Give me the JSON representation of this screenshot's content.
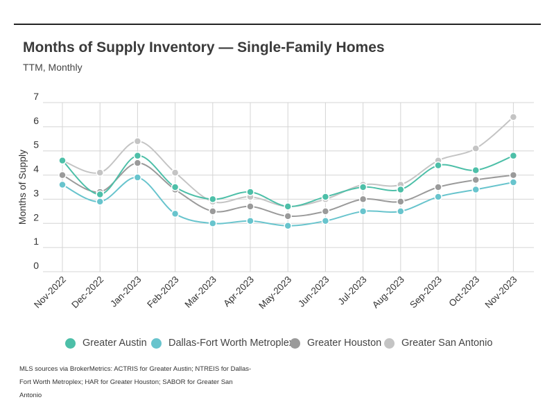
{
  "title": "Months of Supply Inventory — Single-Family Homes",
  "subtitle": "TTM, Monthly",
  "footnote": "MLS sources via BrokerMetrics: ACTRIS for Greater Austin; NTREIS for Dallas-Fort Worth Metroplex; HAR for Greater Houston; SABOR for Greater San Antonio",
  "chart_data": {
    "type": "line",
    "title": "Months of Supply Inventory — Single-Family Homes",
    "subtitle": "TTM, Monthly",
    "xlabel": "",
    "ylabel": "Months of Supply",
    "ylim": [
      0,
      7
    ],
    "yticks": [
      "0",
      "1",
      "2",
      "3",
      "4",
      "5",
      "6",
      "7"
    ],
    "grid": true,
    "legend": "bottom",
    "categories": [
      "Nov-2022",
      "Dec-2022",
      "Jan-2023",
      "Feb-2023",
      "Mar-2023",
      "Apr-2023",
      "May-2023",
      "Jun-2023",
      "Jul-2023",
      "Aug-2023",
      "Sep-2023",
      "Oct-2023",
      "Nov-2023"
    ],
    "series": [
      {
        "name": "Greater Austin",
        "color": "#4dbfa8",
        "values": [
          4.6,
          3.2,
          4.8,
          3.5,
          3.0,
          3.3,
          2.7,
          3.1,
          3.5,
          3.4,
          4.4,
          4.2,
          4.8
        ]
      },
      {
        "name": "Dallas-Fort Worth Metroplex",
        "color": "#68c4cd",
        "values": [
          3.6,
          2.9,
          3.9,
          2.4,
          2.0,
          2.1,
          1.9,
          2.1,
          2.5,
          2.5,
          3.1,
          3.4,
          3.7
        ]
      },
      {
        "name": "Greater Houston",
        "color": "#9a9a9a",
        "values": [
          4.0,
          3.3,
          4.5,
          3.4,
          2.5,
          2.7,
          2.3,
          2.5,
          3.0,
          2.9,
          3.5,
          3.8,
          4.0
        ]
      },
      {
        "name": "Greater San Antonio",
        "color": "#c4c4c4",
        "values": [
          4.6,
          4.1,
          5.4,
          4.1,
          2.9,
          3.1,
          2.7,
          3.0,
          3.6,
          3.6,
          4.6,
          5.1,
          6.4
        ]
      }
    ]
  }
}
